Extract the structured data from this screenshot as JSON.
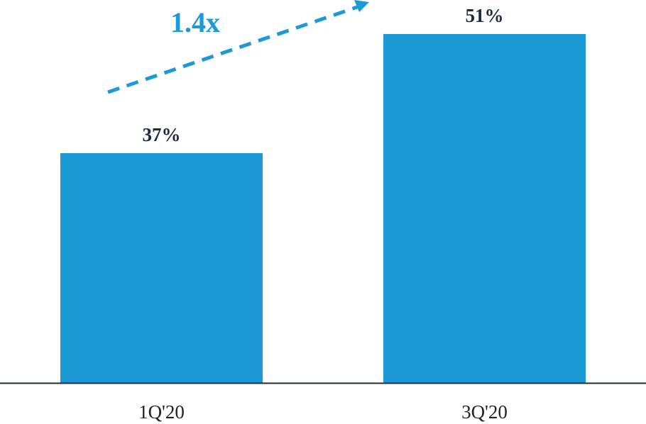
{
  "chart_data": {
    "type": "bar",
    "categories": [
      "1Q'20",
      "3Q'20"
    ],
    "values": [
      37,
      51
    ],
    "data_labels": [
      "37%",
      "51%"
    ],
    "title": "",
    "xlabel": "",
    "ylabel": "",
    "ylim": [
      10,
      55
    ],
    "grid": false,
    "annotation": "1.4x",
    "colors": {
      "bar": "#1b9ad6",
      "arrow": "#1b9ad6",
      "annotation": "#1b9ad6",
      "axis": "#1c2a44",
      "data_label": "#1c2a44"
    }
  }
}
